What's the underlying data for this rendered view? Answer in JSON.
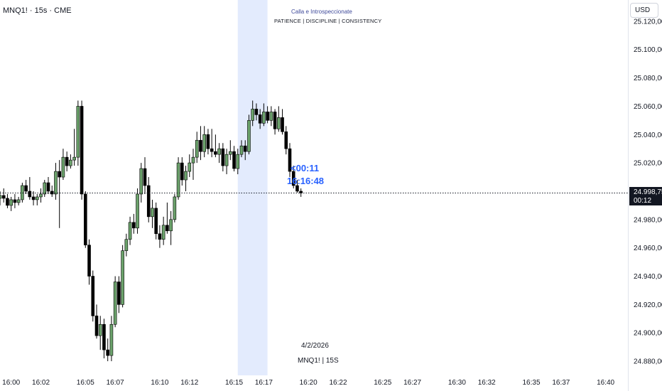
{
  "header": {
    "symbol_title": "MNQ1! · 15s · CME",
    "currency": "USD"
  },
  "watermark": {
    "title": "Calla e Introspeccionate",
    "subtitle": "PATIENCE  |  DISCIPLINE  |  CONSISTENCY"
  },
  "overlay": {
    "countdown": "<00:11",
    "clock": "16:16:48",
    "date": "4/2/2026",
    "symbol": "MNQ1! | 15S"
  },
  "price_tag": {
    "price": "24.998,75",
    "countdown": "00:12"
  },
  "colors": {
    "up": "#6ba26b",
    "down": "#000000",
    "highlight": "#2962ff",
    "session_band": "#e3ebfd"
  },
  "chart_data": {
    "type": "candlestick",
    "current_price": 24998.75,
    "y_axis": {
      "min": 24870,
      "max": 25135,
      "ticks": [
        25120,
        25100,
        25080,
        25060,
        25040,
        25020,
        24980,
        24960,
        24940,
        24920,
        24900,
        24880
      ],
      "tick_labels": [
        "25.120,00",
        "25.100,00",
        "25.080,00",
        "25.060,00",
        "25.040,00",
        "25.020,00",
        "24.980,00",
        "24.960,00",
        "24.940,00",
        "24.920,00",
        "24.900,00",
        "24.880,00"
      ]
    },
    "x_axis": {
      "start_min": 959.25,
      "end_min": 1001.5,
      "ticks": [
        960,
        962,
        965,
        967,
        970,
        972,
        975,
        977,
        980,
        982,
        985,
        987,
        990,
        992,
        995,
        997,
        1000
      ],
      "tick_labels": [
        "16:00",
        "16:02",
        "16:05",
        "16:07",
        "16:10",
        "16:12",
        "16:15",
        "16:17",
        "16:20",
        "16:22",
        "16:25",
        "16:27",
        "16:30",
        "16:32",
        "16:35",
        "16:37",
        "16:40"
      ]
    },
    "session_band": {
      "from_min": 975.25,
      "to_min": 977.25
    },
    "candles": [
      {
        "o": 24995,
        "h": 25000,
        "l": 24990,
        "c": 24997
      },
      {
        "o": 24997,
        "h": 25002,
        "l": 24992,
        "c": 24995
      },
      {
        "o": 24995,
        "h": 24998,
        "l": 24988,
        "c": 24990
      },
      {
        "o": 24990,
        "h": 24996,
        "l": 24986,
        "c": 24994
      },
      {
        "o": 24994,
        "h": 24998,
        "l": 24988,
        "c": 24992
      },
      {
        "o": 24992,
        "h": 24996,
        "l": 24990,
        "c": 24994
      },
      {
        "o": 24994,
        "h": 25006,
        "l": 24992,
        "c": 25004
      },
      {
        "o": 25004,
        "h": 25008,
        "l": 24998,
        "c": 25000
      },
      {
        "o": 25000,
        "h": 25010,
        "l": 24994,
        "c": 24996
      },
      {
        "o": 24996,
        "h": 25000,
        "l": 24990,
        "c": 24994
      },
      {
        "o": 24994,
        "h": 24998,
        "l": 24990,
        "c": 24996
      },
      {
        "o": 24996,
        "h": 25002,
        "l": 24992,
        "c": 24998
      },
      {
        "o": 24998,
        "h": 25008,
        "l": 24996,
        "c": 25006
      },
      {
        "o": 25006,
        "h": 25010,
        "l": 24998,
        "c": 25000
      },
      {
        "o": 25000,
        "h": 25004,
        "l": 24996,
        "c": 24998
      },
      {
        "o": 24998,
        "h": 25020,
        "l": 24994,
        "c": 25014
      },
      {
        "o": 25014,
        "h": 25022,
        "l": 24974,
        "c": 25010
      },
      {
        "o": 25010,
        "h": 25030,
        "l": 25008,
        "c": 25024
      },
      {
        "o": 25024,
        "h": 25028,
        "l": 25014,
        "c": 25018
      },
      {
        "o": 25018,
        "h": 25026,
        "l": 25016,
        "c": 25022
      },
      {
        "o": 25022,
        "h": 25044,
        "l": 25018,
        "c": 25024
      },
      {
        "o": 25024,
        "h": 25064,
        "l": 25018,
        "c": 25060
      },
      {
        "o": 25060,
        "h": 25064,
        "l": 24994,
        "c": 24998
      },
      {
        "o": 24998,
        "h": 25000,
        "l": 24960,
        "c": 24962
      },
      {
        "o": 24962,
        "h": 24966,
        "l": 24934,
        "c": 24940
      },
      {
        "o": 24940,
        "h": 24944,
        "l": 24908,
        "c": 24912
      },
      {
        "o": 24912,
        "h": 24920,
        "l": 24896,
        "c": 24898
      },
      {
        "o": 24898,
        "h": 24912,
        "l": 24888,
        "c": 24906
      },
      {
        "o": 24906,
        "h": 24910,
        "l": 24882,
        "c": 24888
      },
      {
        "o": 24888,
        "h": 24896,
        "l": 24880,
        "c": 24884
      },
      {
        "o": 24884,
        "h": 24912,
        "l": 24880,
        "c": 24906
      },
      {
        "o": 24906,
        "h": 24940,
        "l": 24904,
        "c": 24936
      },
      {
        "o": 24936,
        "h": 24940,
        "l": 24914,
        "c": 24920
      },
      {
        "o": 24920,
        "h": 24962,
        "l": 24918,
        "c": 24958
      },
      {
        "o": 24958,
        "h": 24970,
        "l": 24954,
        "c": 24966
      },
      {
        "o": 24966,
        "h": 24982,
        "l": 24962,
        "c": 24978
      },
      {
        "o": 24978,
        "h": 24984,
        "l": 24970,
        "c": 24974
      },
      {
        "o": 24974,
        "h": 25002,
        "l": 24970,
        "c": 24998
      },
      {
        "o": 24998,
        "h": 25020,
        "l": 24992,
        "c": 25016
      },
      {
        "o": 25016,
        "h": 25024,
        "l": 24998,
        "c": 25004
      },
      {
        "o": 25004,
        "h": 25010,
        "l": 24978,
        "c": 24982
      },
      {
        "o": 24982,
        "h": 24994,
        "l": 24974,
        "c": 24988
      },
      {
        "o": 24988,
        "h": 24992,
        "l": 24966,
        "c": 24970
      },
      {
        "o": 24970,
        "h": 24976,
        "l": 24960,
        "c": 24966
      },
      {
        "o": 24966,
        "h": 24982,
        "l": 24962,
        "c": 24976
      },
      {
        "o": 24976,
        "h": 24992,
        "l": 24970,
        "c": 24972
      },
      {
        "o": 24972,
        "h": 24986,
        "l": 24962,
        "c": 24980
      },
      {
        "o": 24980,
        "h": 24998,
        "l": 24978,
        "c": 24996
      },
      {
        "o": 24996,
        "h": 25024,
        "l": 24994,
        "c": 25020
      },
      {
        "o": 25020,
        "h": 25024,
        "l": 25004,
        "c": 25008
      },
      {
        "o": 25008,
        "h": 25018,
        "l": 25000,
        "c": 25014
      },
      {
        "o": 25014,
        "h": 25026,
        "l": 25010,
        "c": 25020
      },
      {
        "o": 25020,
        "h": 25030,
        "l": 25008,
        "c": 25024
      },
      {
        "o": 25024,
        "h": 25042,
        "l": 25020,
        "c": 25036
      },
      {
        "o": 25036,
        "h": 25046,
        "l": 25022,
        "c": 25028
      },
      {
        "o": 25028,
        "h": 25046,
        "l": 25024,
        "c": 25040
      },
      {
        "o": 25040,
        "h": 25044,
        "l": 25026,
        "c": 25030
      },
      {
        "o": 25030,
        "h": 25044,
        "l": 25024,
        "c": 25028
      },
      {
        "o": 25028,
        "h": 25040,
        "l": 25024,
        "c": 25026
      },
      {
        "o": 25026,
        "h": 25034,
        "l": 25020,
        "c": 25030
      },
      {
        "o": 25030,
        "h": 25034,
        "l": 25014,
        "c": 25018
      },
      {
        "o": 25018,
        "h": 25030,
        "l": 25012,
        "c": 25026
      },
      {
        "o": 25026,
        "h": 25036,
        "l": 25022,
        "c": 25028
      },
      {
        "o": 25028,
        "h": 25032,
        "l": 25014,
        "c": 25016
      },
      {
        "o": 25016,
        "h": 25030,
        "l": 25012,
        "c": 25026
      },
      {
        "o": 25026,
        "h": 25036,
        "l": 25024,
        "c": 25032
      },
      {
        "o": 25032,
        "h": 25036,
        "l": 25022,
        "c": 25028
      },
      {
        "o": 25028,
        "h": 25054,
        "l": 25026,
        "c": 25050
      },
      {
        "o": 25050,
        "h": 25064,
        "l": 25046,
        "c": 25058
      },
      {
        "o": 25058,
        "h": 25062,
        "l": 25050,
        "c": 25054
      },
      {
        "o": 25054,
        "h": 25058,
        "l": 25044,
        "c": 25048
      },
      {
        "o": 25048,
        "h": 25062,
        "l": 25046,
        "c": 25056
      },
      {
        "o": 25056,
        "h": 25060,
        "l": 25048,
        "c": 25050
      },
      {
        "o": 25050,
        "h": 25060,
        "l": 25046,
        "c": 25056
      },
      {
        "o": 25056,
        "h": 25058,
        "l": 25040,
        "c": 25044
      },
      {
        "o": 25044,
        "h": 25060,
        "l": 25042,
        "c": 25052
      },
      {
        "o": 25052,
        "h": 25058,
        "l": 25040,
        "c": 25042
      },
      {
        "o": 25042,
        "h": 25046,
        "l": 25026,
        "c": 25030
      },
      {
        "o": 25030,
        "h": 25034,
        "l": 25010,
        "c": 25014
      },
      {
        "o": 25014,
        "h": 25018,
        "l": 25002,
        "c": 25004
      },
      {
        "o": 25004,
        "h": 25008,
        "l": 24999,
        "c": 25000
      },
      {
        "o": 25000,
        "h": 25002,
        "l": 24996,
        "c": 24998.75
      }
    ]
  }
}
